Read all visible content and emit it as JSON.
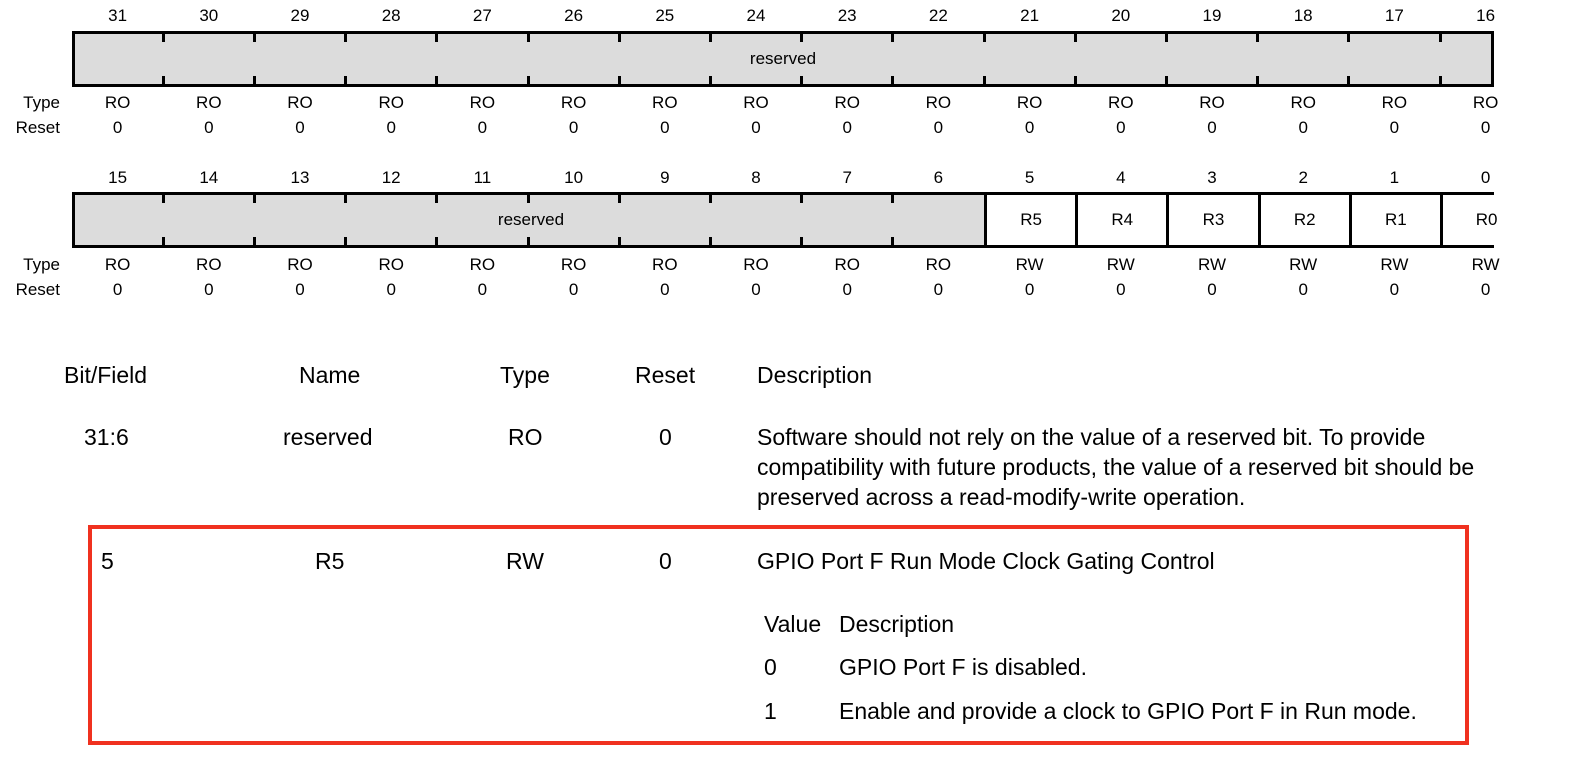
{
  "register": {
    "upper": {
      "bits": [
        "31",
        "30",
        "29",
        "28",
        "27",
        "26",
        "25",
        "24",
        "23",
        "22",
        "21",
        "20",
        "19",
        "18",
        "17",
        "16"
      ],
      "field_label": "reserved",
      "types": [
        "RO",
        "RO",
        "RO",
        "RO",
        "RO",
        "RO",
        "RO",
        "RO",
        "RO",
        "RO",
        "RO",
        "RO",
        "RO",
        "RO",
        "RO",
        "RO"
      ],
      "resets": [
        "0",
        "0",
        "0",
        "0",
        "0",
        "0",
        "0",
        "0",
        "0",
        "0",
        "0",
        "0",
        "0",
        "0",
        "0",
        "0"
      ]
    },
    "lower": {
      "bits": [
        "15",
        "14",
        "13",
        "12",
        "11",
        "10",
        "9",
        "8",
        "7",
        "6",
        "5",
        "4",
        "3",
        "2",
        "1",
        "0"
      ],
      "field_label": "reserved",
      "fields": [
        "R5",
        "R4",
        "R3",
        "R2",
        "R1",
        "R0"
      ],
      "types": [
        "RO",
        "RO",
        "RO",
        "RO",
        "RO",
        "RO",
        "RO",
        "RO",
        "RO",
        "RO",
        "RW",
        "RW",
        "RW",
        "RW",
        "RW",
        "RW"
      ],
      "resets": [
        "0",
        "0",
        "0",
        "0",
        "0",
        "0",
        "0",
        "0",
        "0",
        "0",
        "0",
        "0",
        "0",
        "0",
        "0",
        "0"
      ]
    },
    "type_label": "Type",
    "reset_label": "Reset"
  },
  "table": {
    "headers": {
      "bit_field": "Bit/Field",
      "name": "Name",
      "type": "Type",
      "reset": "Reset",
      "description": "Description"
    },
    "rows": [
      {
        "bit_field": "31:6",
        "name": "reserved",
        "type": "RO",
        "reset": "0",
        "description_lines": [
          "Software should not rely on the value of a reserved bit. To provide",
          "compatibility with future products, the value of a reserved bit should be",
          "preserved across a read-modify-write operation."
        ]
      },
      {
        "bit_field": "5",
        "name": "R5",
        "type": "RW",
        "reset": "0",
        "description": "GPIO Port F Run Mode Clock Gating Control",
        "value_table": {
          "header_value": "Value",
          "header_desc": "Description",
          "entries": [
            {
              "value": "0",
              "desc": "GPIO Port F is disabled."
            },
            {
              "value": "1",
              "desc": "Enable and provide a clock to GPIO Port F in Run mode."
            }
          ]
        }
      }
    ]
  },
  "colors": {
    "reserved_fill": "#dcdcdc",
    "highlight": "#f0311f"
  }
}
